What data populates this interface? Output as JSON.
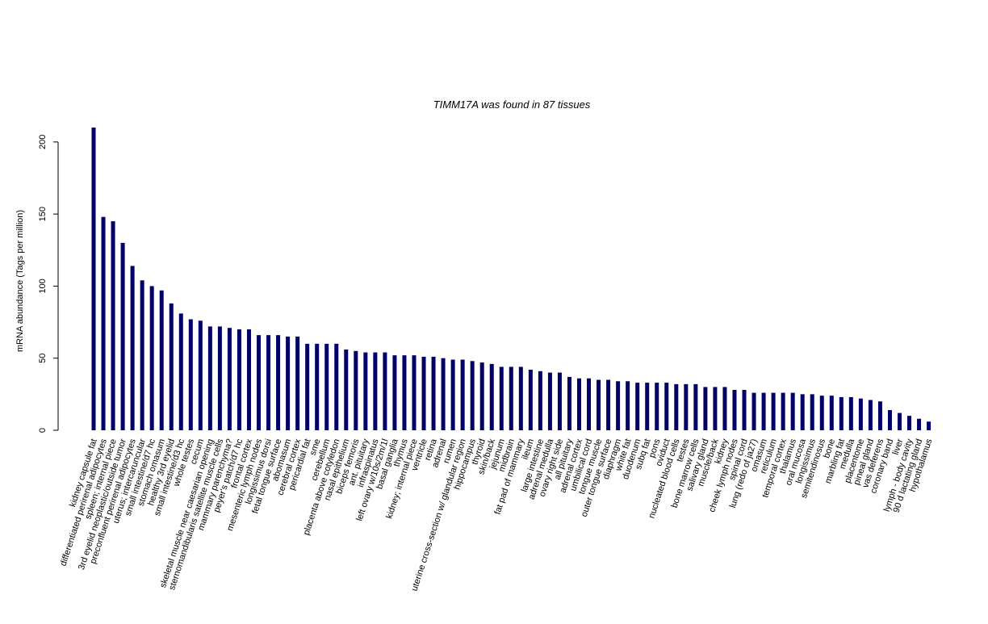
{
  "chart_data": {
    "type": "bar",
    "title": "TIMM17A  was found in  87  tissues",
    "y_label": "mRNA abundance (Tags per million)",
    "color": "#000066",
    "ylim": [
      0,
      210
    ],
    "yticks": [
      0,
      50,
      100,
      150,
      200
    ],
    "categories": [
      "kidney capsule fat",
      "differentiated perirenal adipocytes",
      "spleen; internal piece",
      "3rd eyelid neoplastic/outside tumor",
      "preconfluent perirenal adipocytes",
      "uterus; intercaruncular",
      "small intestine/d7 hc",
      "stomach omasum",
      "healthy 3rd eyelid",
      "small intestine/d3 hc",
      "whole testes",
      "cecum",
      "skeletal muscle near caesarian opening",
      "sternomandibularis satellite muscle cells",
      "mammary parenchyma?",
      "peyer's patch/d7 hc",
      "frontal cortex",
      "mesenteric lymph nodes",
      "longissimus dorsi",
      "fetal tongue surface",
      "abomasum",
      "cerebral cortex",
      "pericardial fat",
      "sme",
      "cerebellum",
      "placenta above cotyledon",
      "nasal epithelium",
      "biceps femoris",
      "ant. pituitary",
      "infraspinatus",
      "left ovary w/10s/2m/1l",
      "basal ganglia",
      "thymus",
      "kidney; internal piece",
      "ventricle",
      "retina",
      "adrenal",
      "rumen",
      "uterine cross-section w/ glandular region",
      "hippocampus",
      "thyroid",
      "skin/back",
      "jejunum",
      "midbrain",
      "fat pad of mammary",
      "ileum",
      "large intestine",
      "adrenal medulla",
      "ovary right side",
      "all pituitary",
      "adrenal cortex",
      "umbilical cord",
      "tongue muscle",
      "outer tongue surface",
      "diaphragm",
      "white fat",
      "duodenum",
      "subq fat",
      "pons",
      "oviduct",
      "nucleated blood cells",
      "testes",
      "bone marrow cells",
      "salivary gland",
      "muscle/back",
      "kidney",
      "cheek lymph nodes",
      "spinal cord",
      "lung (redo of ja27)",
      "omasum",
      "reticulum",
      "temporal cortex",
      "thalamus",
      "oral mucosa",
      "longissimus",
      "semitendinosus",
      "bone",
      "marbling fat",
      "medulla",
      "placentome",
      "pineal gland",
      "vas deferens",
      "coronary band",
      "liver",
      "lymph - body cavity",
      "90 d lactating gland",
      "hypothalamus"
    ],
    "values": [
      210,
      148,
      145,
      130,
      114,
      104,
      100,
      97,
      88,
      81,
      77,
      76,
      72,
      72,
      71,
      70,
      70,
      66,
      66,
      66,
      65,
      65,
      60,
      60,
      60,
      60,
      56,
      55,
      54,
      54,
      54,
      52,
      52,
      52,
      51,
      51,
      50,
      49,
      49,
      48,
      47,
      46,
      44,
      44,
      44,
      42,
      41,
      40,
      40,
      37,
      36,
      36,
      35,
      35,
      34,
      34,
      33,
      33,
      33,
      33,
      32,
      32,
      32,
      30,
      30,
      30,
      28,
      28,
      26,
      26,
      26,
      26,
      26,
      25,
      25,
      24,
      24,
      23,
      23,
      22,
      21,
      20,
      14,
      12,
      10,
      8,
      6
    ]
  }
}
